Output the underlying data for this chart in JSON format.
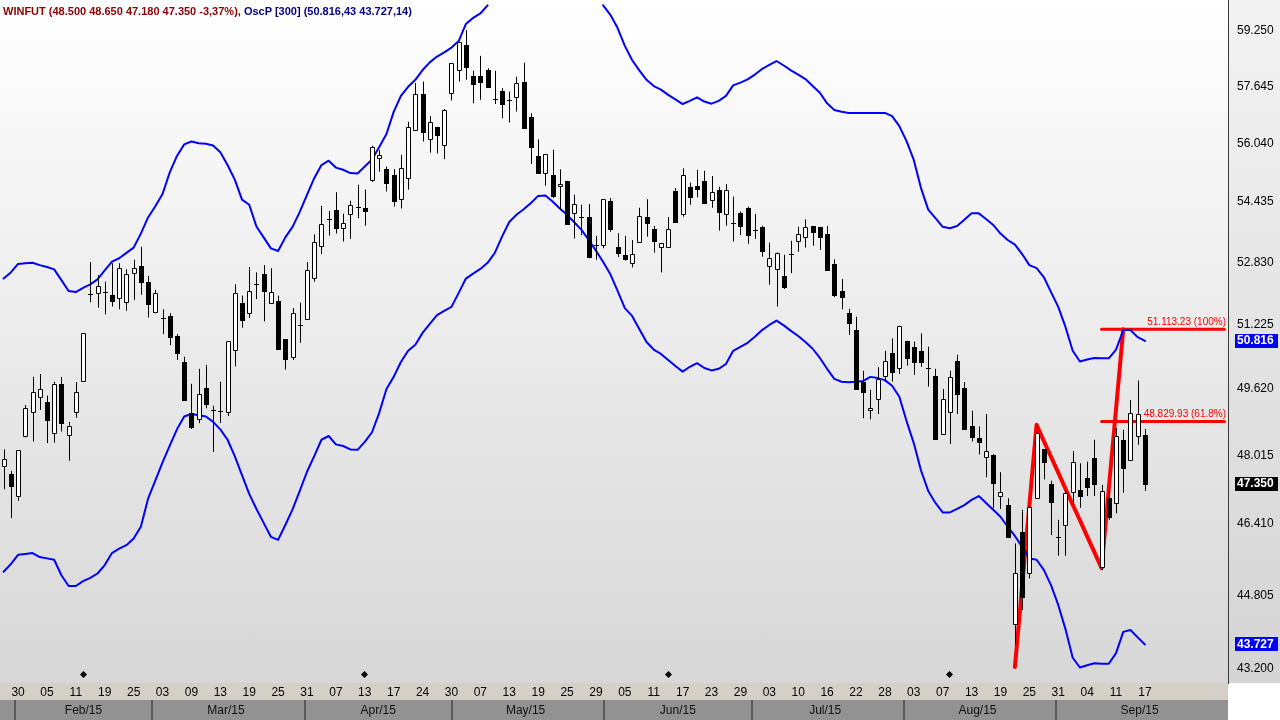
{
  "chart_data": {
    "type": "candlestick",
    "title": "WINFUT (48.500 48.650 47.180 47.350 -3,37%),",
    "subtitle": "OscP [300] (50.816,43 43.727,14)",
    "categories": [
      null,
      null,
      "30",
      null,
      null,
      null,
      "05",
      null,
      null,
      null,
      "11",
      null,
      null,
      null,
      "19",
      null,
      null,
      null,
      "25",
      null,
      null,
      null,
      "03",
      null,
      null,
      null,
      "09",
      null,
      null,
      null,
      "13",
      null,
      null,
      null,
      "19",
      null,
      null,
      null,
      "25",
      null,
      null,
      null,
      "31",
      null,
      null,
      null,
      "07",
      null,
      null,
      null,
      "13",
      null,
      null,
      null,
      "17",
      null,
      null,
      null,
      "24",
      null,
      null,
      null,
      "30",
      null,
      null,
      null,
      "07",
      null,
      null,
      null,
      "13",
      null,
      null,
      null,
      "19",
      null,
      null,
      null,
      "25",
      null,
      null,
      null,
      "29",
      null,
      null,
      null,
      "05",
      null,
      null,
      null,
      "11",
      null,
      null,
      null,
      "17",
      null,
      null,
      null,
      "23",
      null,
      null,
      null,
      "29",
      null,
      null,
      null,
      "03",
      null,
      null,
      null,
      "10",
      null,
      null,
      null,
      "16",
      null,
      null,
      null,
      "22",
      null,
      null,
      null,
      "28",
      null,
      null,
      null,
      "03",
      null,
      null,
      null,
      "07",
      null,
      null,
      null,
      "13",
      null,
      null,
      null,
      "19",
      null,
      null,
      null,
      "25",
      null,
      null,
      null,
      "31",
      null,
      null,
      null,
      "04",
      null,
      null,
      null,
      "11",
      null,
      null,
      null,
      "17",
      null,
      null,
      null,
      null,
      null,
      null,
      null,
      null,
      null,
      null,
      null
    ],
    "ohlc": [
      [
        47770,
        48160,
        47220,
        47930
      ],
      [
        47570,
        47650,
        46550,
        47300
      ],
      [
        47070,
        48140,
        46950,
        48140
      ],
      [
        48490,
        49230,
        48450,
        49150
      ],
      [
        49050,
        49920,
        48350,
        49540
      ],
      [
        49420,
        49990,
        49110,
        49620
      ],
      [
        49300,
        49460,
        48310,
        48870
      ],
      [
        48550,
        49800,
        48320,
        49740
      ],
      [
        49740,
        49920,
        48590,
        48800
      ],
      [
        48500,
        48820,
        47890,
        48710
      ],
      [
        49050,
        49790,
        48920,
        49540
      ],
      [
        49810,
        51010,
        49810,
        51010
      ],
      [
        52010,
        52840,
        51800,
        52010
      ],
      [
        52030,
        52500,
        51660,
        52210
      ],
      [
        52060,
        52330,
        51490,
        52060
      ],
      [
        51990,
        52810,
        51690,
        51840
      ],
      [
        51900,
        52810,
        51620,
        52680
      ],
      [
        51800,
        52650,
        51580,
        52530
      ],
      [
        52550,
        52900,
        51860,
        52680
      ],
      [
        52740,
        53240,
        51990,
        52330
      ],
      [
        52330,
        52480,
        51410,
        51750
      ],
      [
        51540,
        52120,
        51520,
        52030
      ],
      [
        51390,
        51620,
        50990,
        51390
      ],
      [
        51450,
        51520,
        50710,
        50910
      ],
      [
        50940,
        50990,
        50340,
        50520
      ],
      [
        50290,
        50420,
        49340,
        49340
      ],
      [
        49040,
        49750,
        48650,
        48690
      ],
      [
        48890,
        50120,
        48790,
        49490
      ],
      [
        49640,
        50220,
        49150,
        49250
      ],
      [
        49120,
        49210,
        48100,
        49120
      ],
      [
        49080,
        49800,
        48790,
        49080
      ],
      [
        49060,
        50810,
        48960,
        50810
      ],
      [
        50600,
        52260,
        50180,
        52030
      ],
      [
        51790,
        51970,
        51150,
        51350
      ],
      [
        51530,
        52710,
        51400,
        52100
      ],
      [
        52270,
        52570,
        51880,
        52270
      ],
      [
        52520,
        52760,
        51310,
        52080
      ],
      [
        51770,
        52680,
        51770,
        52050
      ],
      [
        51840,
        51970,
        50610,
        50610
      ],
      [
        50860,
        50860,
        50100,
        50360
      ],
      [
        50420,
        51650,
        50340,
        51530
      ],
      [
        51220,
        51790,
        50770,
        51220
      ],
      [
        51380,
        52840,
        51380,
        52620
      ],
      [
        52420,
        53570,
        52330,
        53360
      ],
      [
        53270,
        54330,
        53050,
        53840
      ],
      [
        53970,
        54190,
        53540,
        53970
      ],
      [
        54220,
        54700,
        53590,
        53750
      ],
      [
        53730,
        54120,
        53380,
        53880
      ],
      [
        54100,
        54470,
        53450,
        54360
      ],
      [
        54300,
        54900,
        54000,
        54300
      ],
      [
        54270,
        54770,
        53800,
        54180
      ],
      [
        55030,
        55970,
        54980,
        55930
      ],
      [
        55640,
        55850,
        55260,
        55720
      ],
      [
        55340,
        55400,
        54720,
        54960
      ],
      [
        55170,
        55330,
        54310,
        54450
      ],
      [
        54510,
        55720,
        54260,
        55350
      ],
      [
        55090,
        56640,
        54770,
        56480
      ],
      [
        56410,
        57740,
        56410,
        57420
      ],
      [
        57420,
        57780,
        56090,
        56360
      ],
      [
        56150,
        56800,
        55780,
        56640
      ],
      [
        56490,
        56500,
        55760,
        56270
      ],
      [
        55990,
        57000,
        55600,
        56970
      ],
      [
        57450,
        58310,
        57240,
        58310
      ],
      [
        58100,
        58910,
        57780,
        58910
      ],
      [
        58840,
        59270,
        57830,
        58210
      ],
      [
        57940,
        58090,
        57160,
        57700
      ],
      [
        57940,
        58520,
        57260,
        57780
      ],
      [
        58110,
        58160,
        57610,
        57610
      ],
      [
        57280,
        58090,
        57140,
        57280
      ],
      [
        57520,
        57590,
        56740,
        57130
      ],
      [
        57240,
        57490,
        56620,
        57240
      ],
      [
        57350,
        57920,
        56930,
        57730
      ],
      [
        57780,
        58320,
        56460,
        56460
      ],
      [
        56770,
        56880,
        55470,
        55950
      ],
      [
        55690,
        56150,
        55220,
        55220
      ],
      [
        55220,
        55740,
        54880,
        55740
      ],
      [
        55170,
        55860,
        54540,
        54610
      ],
      [
        54870,
        55320,
        54220,
        54930
      ],
      [
        55010,
        55010,
        53840,
        53840
      ],
      [
        54130,
        54630,
        53460,
        54380
      ],
      [
        54040,
        54360,
        53550,
        54040
      ],
      [
        54030,
        54380,
        52940,
        52980
      ],
      [
        53290,
        53530,
        52900,
        53290
      ],
      [
        53290,
        54510,
        53200,
        54510
      ],
      [
        54460,
        54540,
        53640,
        53710
      ],
      [
        53230,
        53600,
        52970,
        53090
      ],
      [
        53030,
        53530,
        52880,
        52910
      ],
      [
        52810,
        53420,
        52700,
        53050
      ],
      [
        53360,
        54280,
        53360,
        54060
      ],
      [
        54030,
        54510,
        53510,
        53870
      ],
      [
        53710,
        53790,
        53090,
        53400
      ],
      [
        53230,
        53330,
        52570,
        53330
      ],
      [
        53230,
        54030,
        53230,
        53710
      ],
      [
        54730,
        54810,
        53910,
        53910
      ],
      [
        54110,
        55350,
        54040,
        55170
      ],
      [
        54830,
        54960,
        54360,
        54560
      ],
      [
        54870,
        55310,
        54560,
        54780
      ],
      [
        55000,
        55280,
        54400,
        54400
      ],
      [
        54490,
        55140,
        54280,
        54710
      ],
      [
        54760,
        54850,
        53670,
        54160
      ],
      [
        54110,
        54920,
        53800,
        54760
      ],
      [
        53870,
        54580,
        53380,
        53870
      ],
      [
        54130,
        54180,
        53550,
        53800
      ],
      [
        54280,
        54310,
        53320,
        53540
      ],
      [
        53690,
        54110,
        53450,
        53690
      ],
      [
        53770,
        53800,
        52980,
        53140
      ],
      [
        52750,
        53350,
        52250,
        52940
      ],
      [
        52650,
        53090,
        51690,
        53090
      ],
      [
        52480,
        53030,
        52140,
        52200
      ],
      [
        53050,
        53400,
        52550,
        53050
      ],
      [
        53400,
        53770,
        53110,
        53580
      ],
      [
        53490,
        53970,
        53220,
        53760
      ],
      [
        53790,
        53790,
        53270,
        53620
      ],
      [
        53760,
        53770,
        53160,
        53510
      ],
      [
        53580,
        53790,
        52620,
        52620
      ],
      [
        52790,
        52910,
        51930,
        51990
      ],
      [
        52090,
        52400,
        51620,
        51940
      ],
      [
        51520,
        51630,
        50970,
        51280
      ],
      [
        51090,
        51430,
        49620,
        49620
      ],
      [
        49800,
        50070,
        48910,
        49540
      ],
      [
        49100,
        49600,
        48880,
        49150
      ],
      [
        49370,
        50160,
        49010,
        49860
      ],
      [
        49950,
        50570,
        49800,
        50320
      ],
      [
        50510,
        50880,
        49800,
        50050
      ],
      [
        50130,
        51200,
        49990,
        51200
      ],
      [
        50820,
        50820,
        50200,
        50400
      ],
      [
        50660,
        50800,
        49970,
        50300
      ],
      [
        50570,
        51010,
        50170,
        50280
      ],
      [
        50130,
        50670,
        49680,
        50130
      ],
      [
        49940,
        50120,
        48400,
        48400
      ],
      [
        48530,
        49620,
        48510,
        49370
      ],
      [
        49050,
        50070,
        48290,
        49910
      ],
      [
        50320,
        50470,
        49010,
        49490
      ],
      [
        49640,
        49790,
        48640,
        48640
      ],
      [
        48710,
        49090,
        48350,
        48450
      ],
      [
        48440,
        48710,
        48040,
        48330
      ],
      [
        47970,
        49010,
        47500,
        48130
      ],
      [
        48030,
        48050,
        46780,
        47360
      ],
      [
        47060,
        47620,
        46760,
        47160
      ],
      [
        46850,
        47010,
        46110,
        46110
      ],
      [
        44170,
        45970,
        43720,
        45300
      ],
      [
        46240,
        46740,
        44480,
        44770
      ],
      [
        45300,
        46830,
        45180,
        46810
      ],
      [
        47010,
        48750,
        47010,
        48560
      ],
      [
        48160,
        48160,
        47450,
        47870
      ],
      [
        47340,
        47420,
        46160,
        46930
      ],
      [
        46120,
        46510,
        45690,
        46120
      ],
      [
        46380,
        47220,
        45690,
        47130
      ],
      [
        47150,
        48120,
        46810,
        47850
      ],
      [
        47200,
        47830,
        46790,
        47050
      ],
      [
        47480,
        47870,
        47060,
        47260
      ],
      [
        47950,
        48390,
        47060,
        47340
      ],
      [
        45430,
        47320,
        45370,
        47180
      ],
      [
        47010,
        47200,
        46510,
        46580
      ],
      [
        46890,
        48670,
        46660,
        48490
      ],
      [
        48390,
        48630,
        47140,
        47730
      ],
      [
        47910,
        49350,
        47910,
        49030
      ],
      [
        48470,
        49830,
        48270,
        49000
      ],
      [
        48500,
        48650,
        47180,
        47350
      ],
      null,
      null,
      null,
      null,
      null,
      null,
      null,
      null,
      null,
      null,
      null
    ],
    "series": [
      {
        "type": "line",
        "color": "#0000ff",
        "values": [
          52410,
          52570,
          52790,
          52810,
          52820,
          52760,
          52710,
          52650,
          52370,
          52090,
          52060,
          52170,
          52260,
          52390,
          52620,
          52850,
          52940,
          53080,
          53220,
          53590,
          54020,
          54320,
          54650,
          55240,
          55690,
          56010,
          56090,
          56040,
          56030,
          55980,
          55790,
          55440,
          55040,
          54500,
          54360,
          53780,
          53490,
          53200,
          53130,
          53490,
          53770,
          54170,
          54630,
          55080,
          55440,
          55560,
          55370,
          55310,
          55220,
          55210,
          55400,
          55590,
          55940,
          56300,
          56920,
          57370,
          57630,
          57830,
          58110,
          58330,
          58500,
          58620,
          58760,
          58950,
          59450,
          59630,
          59760,
          60000,
          null,
          null,
          null,
          null,
          null,
          null,
          null,
          null,
          null,
          null,
          null,
          null,
          null,
          null,
          null,
          60000,
          59720,
          59330,
          58810,
          58400,
          58100,
          57830,
          57650,
          57550,
          57400,
          57270,
          57140,
          57230,
          57330,
          57210,
          57150,
          57230,
          57370,
          57670,
          57750,
          57840,
          57980,
          58140,
          58260,
          58370,
          58240,
          58100,
          57980,
          57850,
          57650,
          57460,
          57160,
          56970,
          56920,
          56890,
          56890,
          56890,
          56890,
          56890,
          56890,
          56800,
          56520,
          56100,
          55580,
          54810,
          54230,
          54000,
          53770,
          53730,
          53790,
          53960,
          54130,
          54130,
          53980,
          53820,
          53590,
          53420,
          53300,
          53050,
          52760,
          52680,
          52450,
          52060,
          51680,
          51170,
          50570,
          50300,
          50350,
          50390,
          50380,
          50380,
          50600,
          51090,
          51090,
          50910,
          50816.43,
          null,
          null,
          null,
          null,
          null,
          null,
          null,
          null,
          null,
          null,
          null
        ]
      },
      {
        "type": "line",
        "color": "#0000ff",
        "values": [
          45330,
          45500,
          45710,
          45730,
          45750,
          45660,
          45630,
          45600,
          45250,
          45010,
          45010,
          45120,
          45190,
          45290,
          45480,
          45750,
          45850,
          45930,
          46080,
          46350,
          47000,
          47420,
          47850,
          48250,
          48640,
          48950,
          49010,
          48980,
          48950,
          48820,
          48640,
          48390,
          48000,
          47550,
          47110,
          46760,
          46440,
          46120,
          46050,
          46390,
          46750,
          47180,
          47630,
          48000,
          48390,
          48480,
          48280,
          48240,
          48160,
          48150,
          48340,
          48570,
          49040,
          49620,
          49920,
          50290,
          50570,
          50720,
          51020,
          51250,
          51470,
          51580,
          51680,
          52040,
          52410,
          52540,
          52660,
          52820,
          53080,
          53510,
          53900,
          54090,
          54240,
          54410,
          54600,
          54610,
          54450,
          54260,
          54090,
          53890,
          53690,
          53420,
          53140,
          52840,
          52520,
          52090,
          51650,
          51450,
          51120,
          50790,
          50600,
          50490,
          50340,
          50190,
          50050,
          50170,
          50260,
          50140,
          50080,
          50120,
          50240,
          50570,
          50670,
          50770,
          50920,
          51090,
          51220,
          51330,
          51210,
          51070,
          50940,
          50790,
          50620,
          50390,
          50120,
          49870,
          49800,
          49790,
          49800,
          49820,
          49920,
          49890,
          49840,
          49700,
          49430,
          48840,
          48310,
          47660,
          47180,
          46900,
          46680,
          46680,
          46760,
          46850,
          46970,
          47060,
          46900,
          46740,
          46580,
          46350,
          46140,
          45890,
          45630,
          45600,
          45370,
          45030,
          44590,
          44060,
          43440,
          43230,
          43280,
          43320,
          43310,
          43310,
          43540,
          44000,
          44040,
          43880,
          43727.14,
          null,
          null,
          null,
          null,
          null,
          null,
          null,
          null,
          null,
          null,
          null
        ]
      },
      {
        "type": "line",
        "color": "#ff0000",
        "values": [
          null,
          null,
          null,
          null,
          null,
          null,
          null,
          null,
          null,
          null,
          null,
          null,
          null,
          null,
          null,
          null,
          null,
          null,
          null,
          null,
          null,
          null,
          null,
          null,
          null,
          null,
          null,
          null,
          null,
          null,
          null,
          null,
          null,
          null,
          null,
          null,
          null,
          null,
          null,
          null,
          null,
          null,
          null,
          null,
          null,
          null,
          null,
          null,
          null,
          null,
          null,
          null,
          null,
          null,
          null,
          null,
          null,
          null,
          null,
          null,
          null,
          null,
          null,
          null,
          null,
          null,
          null,
          null,
          null,
          null,
          null,
          null,
          null,
          null,
          null,
          null,
          null,
          null,
          null,
          null,
          null,
          null,
          null,
          null,
          null,
          null,
          null,
          null,
          null,
          null,
          null,
          null,
          null,
          null,
          null,
          null,
          null,
          null,
          null,
          null,
          null,
          null,
          null,
          null,
          null,
          null,
          null,
          null,
          null,
          null,
          null,
          null,
          null,
          null,
          null,
          null,
          null,
          null,
          null,
          null,
          null,
          null,
          null,
          null,
          null,
          null,
          null,
          null,
          null,
          null,
          null,
          null,
          null,
          null,
          null,
          null,
          null,
          null,
          null,
          null,
          43240,
          null,
          46840,
          48750,
          48360,
          47980,
          47610,
          47230,
          46860,
          46500,
          46130,
          45770,
          45410,
          47240,
          49130,
          51113.23,
          null,
          null,
          null,
          null,
          null,
          null,
          null,
          null,
          null,
          null,
          null,
          null,
          null,
          null
        ]
      },
      {
        "type": "line",
        "name": "51.113.23 (100%)",
        "color": "#ff0000",
        "values": [
          null,
          null,
          null,
          null,
          null,
          null,
          null,
          null,
          null,
          null,
          null,
          null,
          null,
          null,
          null,
          null,
          null,
          null,
          null,
          null,
          null,
          null,
          null,
          null,
          null,
          null,
          null,
          null,
          null,
          null,
          null,
          null,
          null,
          null,
          null,
          null,
          null,
          null,
          null,
          null,
          null,
          null,
          null,
          null,
          null,
          null,
          null,
          null,
          null,
          null,
          null,
          null,
          null,
          null,
          null,
          null,
          null,
          null,
          null,
          null,
          null,
          null,
          null,
          null,
          null,
          null,
          null,
          null,
          null,
          null,
          null,
          null,
          null,
          null,
          null,
          null,
          null,
          null,
          null,
          null,
          null,
          null,
          null,
          null,
          null,
          null,
          null,
          null,
          null,
          null,
          null,
          null,
          null,
          null,
          null,
          null,
          null,
          null,
          null,
          null,
          null,
          null,
          null,
          null,
          null,
          null,
          null,
          null,
          null,
          null,
          null,
          null,
          null,
          null,
          null,
          null,
          null,
          null,
          null,
          null,
          null,
          null,
          null,
          null,
          null,
          null,
          null,
          null,
          null,
          null,
          null,
          null,
          null,
          null,
          null,
          null,
          null,
          null,
          null,
          null,
          null,
          null,
          null,
          null,
          null,
          null,
          null,
          null,
          null,
          null,
          null,
          null,
          51113.23,
          51113.23,
          51113.23,
          51113.23,
          51113.23,
          51113.23,
          51113.23,
          51113.23,
          51113.23,
          51113.23,
          51113.23,
          51113.23,
          51113.23,
          51113.23,
          51113.23,
          51113.23,
          51113.23,
          51113.23
        ]
      },
      {
        "type": "line",
        "name": "48.829.93 (61.8%)",
        "color": "#ff0000",
        "values": [
          null,
          null,
          null,
          null,
          null,
          null,
          null,
          null,
          null,
          null,
          null,
          null,
          null,
          null,
          null,
          null,
          null,
          null,
          null,
          null,
          null,
          null,
          null,
          null,
          null,
          null,
          null,
          null,
          null,
          null,
          null,
          null,
          null,
          null,
          null,
          null,
          null,
          null,
          null,
          null,
          null,
          null,
          null,
          null,
          null,
          null,
          null,
          null,
          null,
          null,
          null,
          null,
          null,
          null,
          null,
          null,
          null,
          null,
          null,
          null,
          null,
          null,
          null,
          null,
          null,
          null,
          null,
          null,
          null,
          null,
          null,
          null,
          null,
          null,
          null,
          null,
          null,
          null,
          null,
          null,
          null,
          null,
          null,
          null,
          null,
          null,
          null,
          null,
          null,
          null,
          null,
          null,
          null,
          null,
          null,
          null,
          null,
          null,
          null,
          null,
          null,
          null,
          null,
          null,
          null,
          null,
          null,
          null,
          null,
          null,
          null,
          null,
          null,
          null,
          null,
          null,
          null,
          null,
          null,
          null,
          null,
          null,
          null,
          null,
          null,
          null,
          null,
          null,
          null,
          null,
          null,
          null,
          null,
          null,
          null,
          null,
          null,
          null,
          null,
          null,
          null,
          null,
          null,
          null,
          null,
          null,
          null,
          null,
          null,
          null,
          null,
          null,
          48829.93,
          48829.93,
          48829.93,
          48829.93,
          48829.93,
          48829.93,
          48829.93,
          48829.93,
          48829.93,
          48829.93,
          48829.93,
          48829.93,
          48829.93,
          48829.93,
          48829.93,
          48829.93,
          48829.93,
          48829.93
        ]
      }
    ],
    "x2lim": [
      "2015-01-29",
      "2015-10-06"
    ],
    "x2ticks": [
      {
        "value": "2015-02-15",
        "label": "Feb/15"
      },
      {
        "value": "2015-03-16",
        "label": "Mar/15"
      },
      {
        "value": "2015-04-16",
        "label": "Apr/15"
      },
      {
        "value": "2015-05-16",
        "label": "May/15"
      },
      {
        "value": "2015-06-16",
        "label": "Jun/15"
      },
      {
        "value": "2015-07-16",
        "label": "Jul/15"
      },
      {
        "value": "2015-08-16",
        "label": "Aug/15"
      },
      {
        "value": "2015-09-18",
        "label": "Sep/15"
      }
    ],
    "ylim": [
      42900,
      60160
    ],
    "yticks": [
      {
        "value": 43200,
        "label": "43.200"
      },
      {
        "value": 43727.14,
        "label": "43.727"
      },
      {
        "value": 44805,
        "label": "44.805"
      },
      {
        "value": 46410,
        "label": "46.410"
      },
      {
        "value": 47350,
        "label": "47.350"
      },
      {
        "value": 48015,
        "label": "48.015"
      },
      {
        "value": 49620,
        "label": "49.620"
      },
      {
        "value": 50816.43,
        "label": "50.816"
      },
      {
        "value": 51225,
        "label": "51.225"
      },
      {
        "value": 52830,
        "label": "52.830"
      },
      {
        "value": 54435,
        "label": "54.435"
      },
      {
        "value": 56040,
        "label": "56.040"
      },
      {
        "value": 57645,
        "label": "57.645"
      },
      {
        "value": 59250,
        "label": "59.250"
      }
    ],
    "log": true,
    "marker": "none"
  }
}
